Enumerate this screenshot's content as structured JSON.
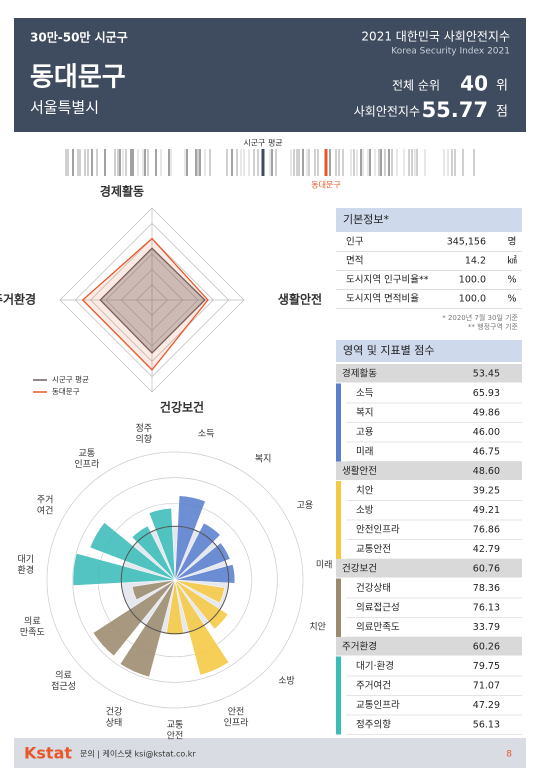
{
  "header": {
    "group": "30만-50만 시군구",
    "title": "2021 대한민국 사회안전지수",
    "subtitle": "Korea Security Index 2021",
    "district": "동대문구",
    "city": "서울특별시",
    "rank_label": "전체 순위",
    "rank": "40",
    "rank_unit": "위",
    "index_label": "사회안전지수",
    "index": "55.77",
    "index_unit": "점"
  },
  "strip": {
    "average_label": "시군구 평균",
    "district_label": "동대문구"
  },
  "basic_info": {
    "title": "기본정보*",
    "rows": [
      [
        "인구",
        "345,156",
        "명"
      ],
      [
        "면적",
        "14.2",
        "㎢"
      ],
      [
        "도시지역 인구비율**",
        "100.0",
        "%"
      ],
      [
        "도시지역 면적비율",
        "100.0",
        "%"
      ]
    ],
    "notes": [
      "* 2020년 7월 30일 기준",
      "** 행정구역 기준"
    ]
  },
  "scores": {
    "title": "영역 및 지표별 점수",
    "groups": [
      {
        "name": "경제활동",
        "value": "53.45",
        "color": "#5b7fcf",
        "items": [
          [
            "소득",
            "65.93"
          ],
          [
            "복지",
            "49.86"
          ],
          [
            "고용",
            "46.00"
          ],
          [
            "미래",
            "46.75"
          ]
        ]
      },
      {
        "name": "생활안전",
        "value": "48.60",
        "color": "#f5c842",
        "items": [
          [
            "치안",
            "39.25"
          ],
          [
            "소방",
            "49.21"
          ],
          [
            "안전인프라",
            "76.86"
          ],
          [
            "교통안전",
            "42.79"
          ]
        ]
      },
      {
        "name": "건강보건",
        "value": "60.76",
        "color": "#9c8a6e",
        "items": [
          [
            "건강상태",
            "78.36"
          ],
          [
            "의료접근성",
            "76.13"
          ],
          [
            "의료만족도",
            "33.79"
          ]
        ]
      },
      {
        "name": "주거환경",
        "value": "60.26",
        "color": "#3bbcb8",
        "items": [
          [
            "대기·환경",
            "79.75"
          ],
          [
            "주거여건",
            "71.07"
          ],
          [
            "교통인프라",
            "47.29"
          ],
          [
            "정주의향",
            "56.13"
          ]
        ]
      }
    ]
  },
  "chart_data": [
    {
      "type": "radar",
      "categories": [
        "경제활동",
        "생활안전",
        "건강보건",
        "주거환경"
      ],
      "rlim": [
        0,
        80
      ],
      "series": [
        {
          "name": "시군구 평균",
          "color": "#6b6060",
          "values": [
            45,
            46,
            46,
            45
          ]
        },
        {
          "name": "동대문구",
          "color": "#e8572a",
          "values": [
            53.45,
            48.6,
            60.76,
            60.26
          ]
        }
      ]
    },
    {
      "type": "polar-bar",
      "rlim": [
        0,
        100
      ],
      "categories": [
        "소득",
        "복지",
        "고용",
        "미래",
        "치안",
        "소방",
        "안전\n인프라",
        "교통\n안전",
        "건강\n상태",
        "의료\n접근성",
        "의료\n만족도",
        "대기\n환경",
        "주거\n여건",
        "교통\n인프라",
        "정주\n의향"
      ],
      "values": [
        65.93,
        49.86,
        46.0,
        46.75,
        39.25,
        49.21,
        76.86,
        42.79,
        78.36,
        76.13,
        33.79,
        79.75,
        71.07,
        47.29,
        56.13
      ],
      "colors": [
        "#5b7fcf",
        "#5b7fcf",
        "#5b7fcf",
        "#5b7fcf",
        "#f5c842",
        "#f5c842",
        "#f5c842",
        "#f5c842",
        "#9c8a6e",
        "#9c8a6e",
        "#9c8a6e",
        "#3bbcb8",
        "#3bbcb8",
        "#3bbcb8",
        "#3bbcb8"
      ]
    }
  ],
  "footer": {
    "brand": "Kstat",
    "contact": "문의 | 케이스탯 ksi@kstat.co.kr",
    "page": "8"
  }
}
